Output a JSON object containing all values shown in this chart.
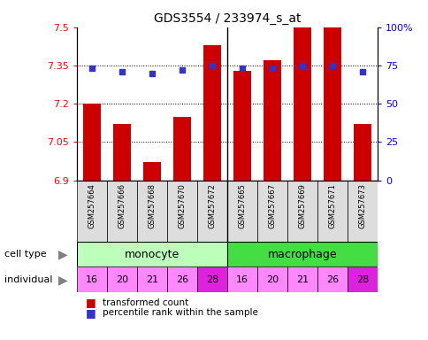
{
  "title": "GDS3554 / 233974_s_at",
  "samples": [
    "GSM257664",
    "GSM257666",
    "GSM257668",
    "GSM257670",
    "GSM257672",
    "GSM257665",
    "GSM257667",
    "GSM257669",
    "GSM257671",
    "GSM257673"
  ],
  "bar_values": [
    7.2,
    7.12,
    6.97,
    7.15,
    7.43,
    7.33,
    7.37,
    7.5,
    7.5,
    7.12
  ],
  "percentile_values": [
    73,
    71,
    70,
    72,
    75,
    73,
    73,
    75,
    75,
    71
  ],
  "individuals": [
    "16",
    "20",
    "21",
    "26",
    "28",
    "16",
    "20",
    "21",
    "26",
    "28"
  ],
  "ylim_left": [
    6.9,
    7.5
  ],
  "ylim_right": [
    0,
    100
  ],
  "yticks_left": [
    6.9,
    7.05,
    7.2,
    7.35,
    7.5
  ],
  "yticks_right": [
    0,
    25,
    50,
    75,
    100
  ],
  "ytick_labels_left": [
    "6.9",
    "7.05",
    "7.2",
    "7.35",
    "7.5"
  ],
  "ytick_labels_right": [
    "0",
    "25",
    "50",
    "75",
    "100%"
  ],
  "bar_color": "#cc0000",
  "percentile_color": "#3333cc",
  "monocyte_color": "#bbffbb",
  "macrophage_color": "#44dd44",
  "individual_color_light": "#ff88ff",
  "individual_color_dark": "#dd22dd",
  "individual_dark_indices": [
    4,
    9
  ],
  "sample_bg_color": "#dddddd",
  "legend_bar": "transformed count",
  "legend_percentile": "percentile rank within the sample",
  "grid_yticks": [
    7.05,
    7.2,
    7.35
  ],
  "bar_bottom": 6.9,
  "n_monocyte": 5,
  "n_total": 10
}
